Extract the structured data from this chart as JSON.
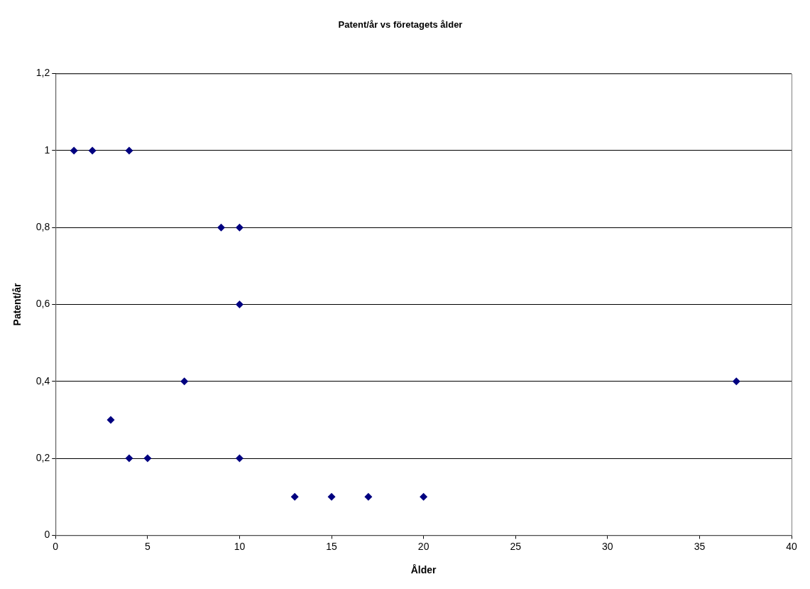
{
  "chart_data": {
    "type": "scatter",
    "title": "Patent/år vs företagets ålder",
    "xlabel": "Ålder",
    "ylabel": "Patent/år",
    "x": [
      1,
      2,
      4,
      9,
      10,
      10,
      7,
      37,
      3,
      4,
      5,
      10,
      13,
      15,
      17,
      20
    ],
    "values": [
      1,
      1,
      1,
      0.8,
      0.8,
      0.6,
      0.4,
      0.4,
      0.3,
      0.2,
      0.2,
      0.2,
      0.1,
      0.1,
      0.1,
      0.1
    ],
    "color": "#000080",
    "marker": "diamond",
    "xlim": [
      0,
      40
    ],
    "xticks": [
      0,
      5,
      10,
      15,
      20,
      25,
      30,
      35,
      40
    ],
    "ylim": [
      0,
      1.2
    ],
    "yticks": [
      0,
      {
        "value": 0.2,
        "label": "0,2"
      },
      {
        "value": 0.4,
        "label": "0,4"
      },
      {
        "value": 0.6,
        "label": "0,6"
      },
      {
        "value": 0.8,
        "label": "0,8"
      },
      1,
      {
        "value": 1.2,
        "label": "1,2"
      }
    ],
    "grid": "y"
  }
}
